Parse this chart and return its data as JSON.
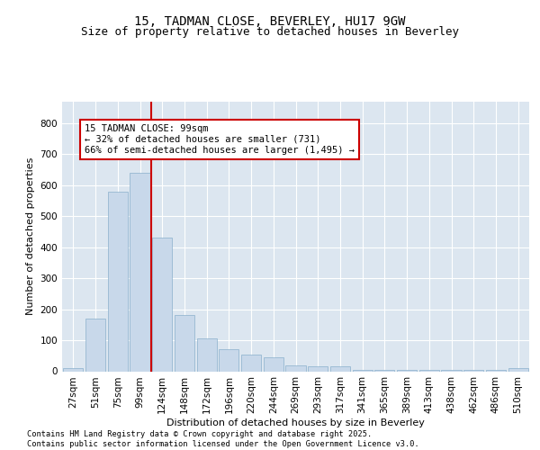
{
  "title1": "15, TADMAN CLOSE, BEVERLEY, HU17 9GW",
  "title2": "Size of property relative to detached houses in Beverley",
  "xlabel": "Distribution of detached houses by size in Beverley",
  "ylabel": "Number of detached properties",
  "categories": [
    "27sqm",
    "51sqm",
    "75sqm",
    "99sqm",
    "124sqm",
    "148sqm",
    "172sqm",
    "196sqm",
    "220sqm",
    "244sqm",
    "269sqm",
    "293sqm",
    "317sqm",
    "341sqm",
    "365sqm",
    "389sqm",
    "413sqm",
    "438sqm",
    "462sqm",
    "486sqm",
    "510sqm"
  ],
  "values": [
    10,
    170,
    580,
    640,
    430,
    180,
    105,
    70,
    55,
    45,
    20,
    17,
    17,
    5,
    5,
    5,
    5,
    5,
    5,
    5,
    10
  ],
  "bar_color": "#c8d8ea",
  "bar_edge_color": "#8ab0cc",
  "background_color": "#dce6f0",
  "grid_color": "#ffffff",
  "red_line_x": 3.5,
  "annotation_text": "15 TADMAN CLOSE: 99sqm\n← 32% of detached houses are smaller (731)\n66% of semi-detached houses are larger (1,495) →",
  "annotation_box_color": "#ffffff",
  "annotation_box_edge": "#cc0000",
  "ylim": [
    0,
    870
  ],
  "yticks": [
    0,
    100,
    200,
    300,
    400,
    500,
    600,
    700,
    800
  ],
  "footer": "Contains HM Land Registry data © Crown copyright and database right 2025.\nContains public sector information licensed under the Open Government Licence v3.0.",
  "title_fontsize": 10,
  "subtitle_fontsize": 9,
  "axis_label_fontsize": 8,
  "tick_fontsize": 7.5,
  "annotation_fontsize": 7.5
}
